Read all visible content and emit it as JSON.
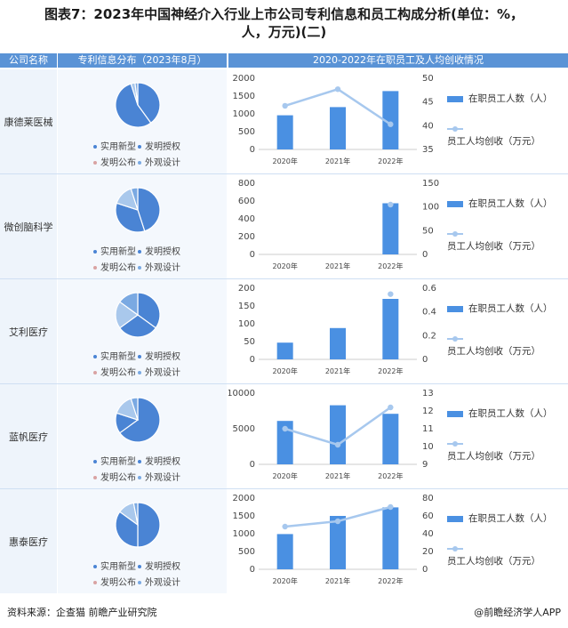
{
  "title": {
    "line1": "图表7：2023年中国神经介入行业上市公司专利信息和员工构成分析(单位：%，",
    "line2": "人，万元)(二)"
  },
  "headers": {
    "company": "公司名称",
    "patent": "专利信息分布（2023年8月）",
    "staff": "2020-2022年在职员工及人均创收情况"
  },
  "pie_legend": {
    "utility": "实用新型",
    "granted": "发明授权",
    "published": "发明公布",
    "design": "外观设计"
  },
  "chart_legend": {
    "bar": "在职员工人数（人）",
    "line": "员工人均创收（万元）"
  },
  "colors": {
    "header": "#5a93d6",
    "bar": "#4a90e2",
    "line": "#a7c8ee",
    "utility": "#4a84d4",
    "granted": "#4a84d4",
    "published": "#a9c8ec",
    "design": "#7aa9e2"
  },
  "chart_data": [
    {
      "type": "bar+line",
      "company": "康德莱医械",
      "categories": [
        "2020年",
        "2021年",
        "2022年"
      ],
      "bars": [
        960,
        1190,
        1640
      ],
      "line": [
        44.2,
        47.7,
        40.3
      ],
      "ylim_left": [
        0,
        2000
      ],
      "yticks_left": [
        "0",
        "500",
        "1000",
        "1500",
        "2000"
      ],
      "ylim_right": [
        35,
        50
      ],
      "yticks_right": [
        "35",
        "40",
        "45",
        "50"
      ],
      "pie": [
        {
          "label": "实用新型",
          "value": 40
        },
        {
          "label": "发明授权",
          "value": 55
        },
        {
          "label": "发明公布",
          "value": 3
        },
        {
          "label": "外观设计",
          "value": 2
        }
      ]
    },
    {
      "type": "bar+line",
      "company": "微创脑科学",
      "categories": [
        "2020年",
        "2021年",
        "2022年"
      ],
      "bars": [
        null,
        null,
        575
      ],
      "line": [
        null,
        null,
        105
      ],
      "ylim_left": [
        0,
        800
      ],
      "yticks_left": [
        "0",
        "200",
        "400",
        "600",
        "800"
      ],
      "ylim_right": [
        0,
        150
      ],
      "yticks_right": [
        "0",
        "50",
        "100",
        "150"
      ],
      "pie": [
        {
          "label": "实用新型",
          "value": 45
        },
        {
          "label": "发明授权",
          "value": 35
        },
        {
          "label": "发明公布",
          "value": 15
        },
        {
          "label": "外观设计",
          "value": 5
        }
      ]
    },
    {
      "type": "bar+line",
      "company": "艾利医疗",
      "categories": [
        "2020年",
        "2021年",
        "2022年"
      ],
      "bars": [
        47,
        88,
        170
      ],
      "line": [
        null,
        null,
        0.55
      ],
      "ylim_left": [
        0,
        200
      ],
      "yticks_left": [
        "0",
        "50",
        "100",
        "150",
        "200"
      ],
      "ylim_right": [
        0,
        0.6
      ],
      "yticks_right": [
        "0",
        "0.2",
        "0.4",
        "0.6"
      ],
      "pie": [
        {
          "label": "实用新型",
          "value": 35
        },
        {
          "label": "发明授权",
          "value": 30
        },
        {
          "label": "发明公布",
          "value": 20
        },
        {
          "label": "外观设计",
          "value": 15
        }
      ]
    },
    {
      "type": "bar+line",
      "company": "蓝帆医疗",
      "categories": [
        "2020年",
        "2021年",
        "2022年"
      ],
      "bars": [
        6100,
        8300,
        7100
      ],
      "line": [
        11.0,
        10.1,
        12.2
      ],
      "ylim_left": [
        0,
        10000
      ],
      "yticks_left": [
        "0",
        "5000",
        "10000"
      ],
      "ylim_right": [
        9,
        13
      ],
      "yticks_right": [
        "9",
        "10",
        "11",
        "12",
        "13"
      ],
      "pie": [
        {
          "label": "实用新型",
          "value": 65
        },
        {
          "label": "发明授权",
          "value": 15
        },
        {
          "label": "发明公布",
          "value": 15
        },
        {
          "label": "外观设计",
          "value": 5
        }
      ]
    },
    {
      "type": "bar+line",
      "company": "惠泰医疗",
      "categories": [
        "2020年",
        "2021年",
        "2022年"
      ],
      "bars": [
        990,
        1500,
        1740
      ],
      "line": [
        48,
        54,
        70
      ],
      "ylim_left": [
        0,
        2000
      ],
      "yticks_left": [
        "0",
        "500",
        "1000",
        "1500",
        "2000"
      ],
      "ylim_right": [
        0,
        80
      ],
      "yticks_right": [
        "0",
        "20",
        "40",
        "60",
        "80"
      ],
      "pie": [
        {
          "label": "实用新型",
          "value": 50
        },
        {
          "label": "发明授权",
          "value": 35
        },
        {
          "label": "发明公布",
          "value": 12
        },
        {
          "label": "外观设计",
          "value": 3
        }
      ]
    }
  ],
  "footer": {
    "source": "资料来源：企查猫 前瞻产业研究院",
    "brand": "@前瞻经济学人APP"
  }
}
